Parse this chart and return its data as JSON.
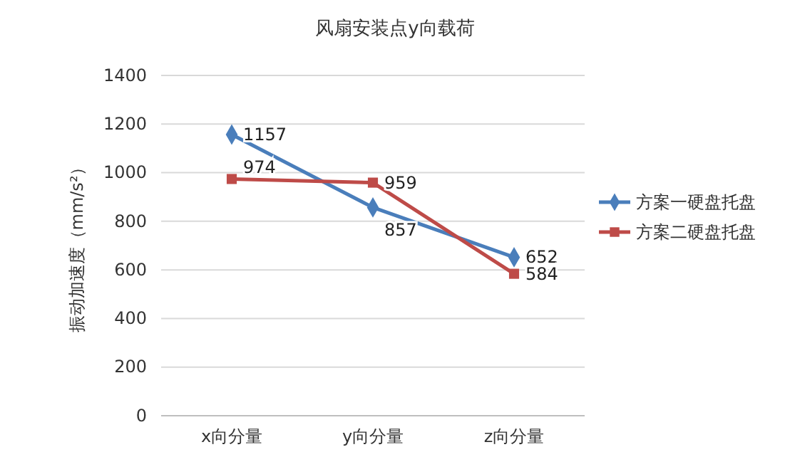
{
  "chart_data": {
    "type": "line",
    "title": "风扇安装点y向载荷",
    "ylabel": "振动加速度（mm/s²）",
    "categories": [
      "x向分量",
      "y向分量",
      "z向分量"
    ],
    "series": [
      {
        "name": "方案一硬盘托盘",
        "color": "#4a7ebb",
        "values": [
          1157,
          857,
          652
        ],
        "marker": "diamond"
      },
      {
        "name": "方案二硬盘托盘",
        "color": "#be4b48",
        "values": [
          974,
          959,
          584
        ],
        "marker": "square"
      }
    ],
    "ylim": [
      0,
      1400
    ],
    "yticks": [
      0,
      200,
      400,
      600,
      800,
      1000,
      1200,
      1400
    ],
    "grid": "y",
    "legend": "right",
    "data_labels": true,
    "line_style": "solid"
  }
}
